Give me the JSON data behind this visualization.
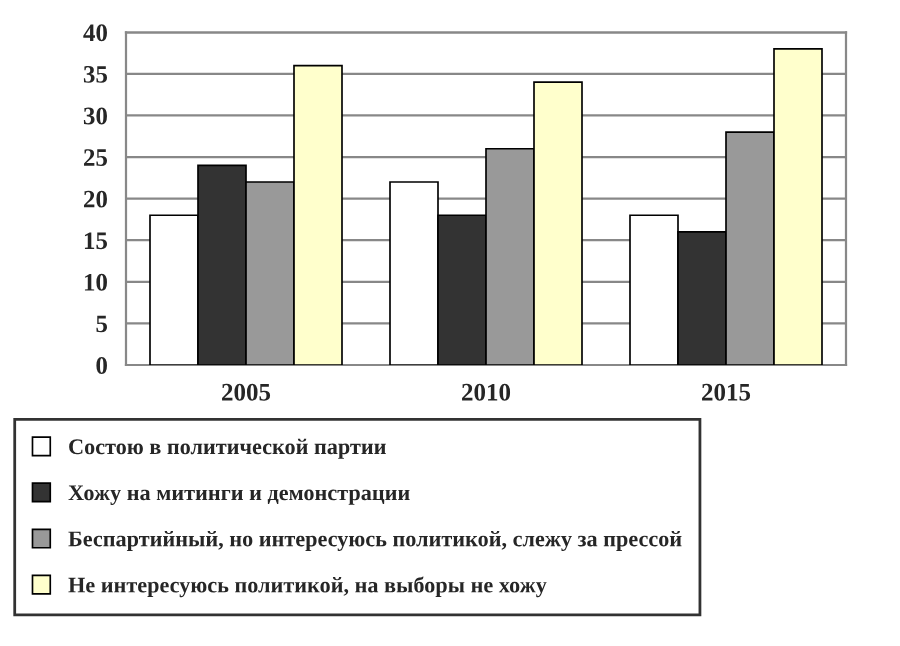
{
  "chart_data": {
    "type": "bar",
    "categories": [
      "2005",
      "2010",
      "2015"
    ],
    "series": [
      {
        "name": "Состою в политической партии",
        "color": "#ffffff",
        "values": [
          18,
          22,
          18
        ]
      },
      {
        "name": "Хожу на митинги и демонстрации",
        "color": "#333333",
        "values": [
          24,
          18,
          16
        ]
      },
      {
        "name": "Беспартийный, но интересуюсь политикой, слежу за прессой",
        "color": "#999999",
        "values": [
          22,
          26,
          28
        ]
      },
      {
        "name": "Не интересуюсь политикой, на выборы не хожу",
        "color": "#ffffcc",
        "values": [
          36,
          34,
          38
        ]
      }
    ],
    "ylim": [
      0,
      40
    ],
    "yticks": [
      0,
      5,
      10,
      15,
      20,
      25,
      30,
      35,
      40
    ],
    "grid": "y",
    "legend": "bottom"
  }
}
